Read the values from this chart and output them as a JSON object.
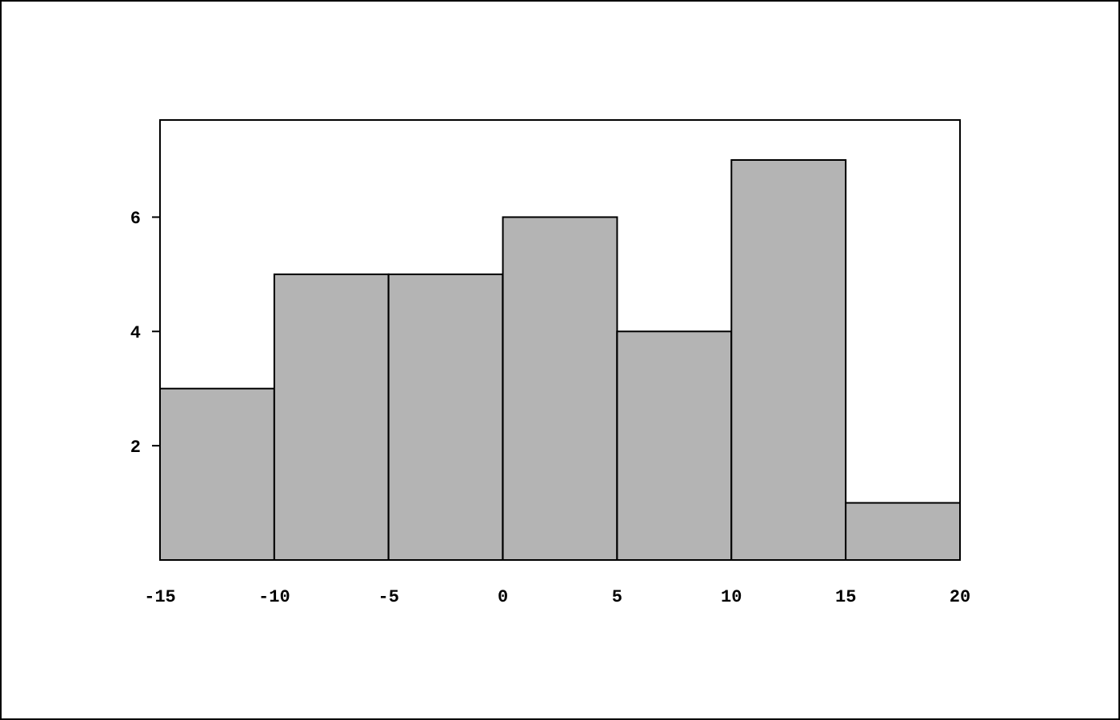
{
  "chart_data": {
    "type": "histogram",
    "bins": [
      -15,
      -10,
      -5,
      0,
      5,
      10,
      15,
      20
    ],
    "values": [
      3,
      5,
      5,
      6,
      4,
      7,
      1
    ],
    "color": "#b4b4b4",
    "xlim": [
      -15,
      20
    ],
    "xticks": [
      -15,
      -10,
      -5,
      0,
      5,
      10,
      15,
      20
    ],
    "ylim": [
      0,
      7.7
    ],
    "yticks": [
      2,
      4,
      6
    ],
    "grid": false
  }
}
